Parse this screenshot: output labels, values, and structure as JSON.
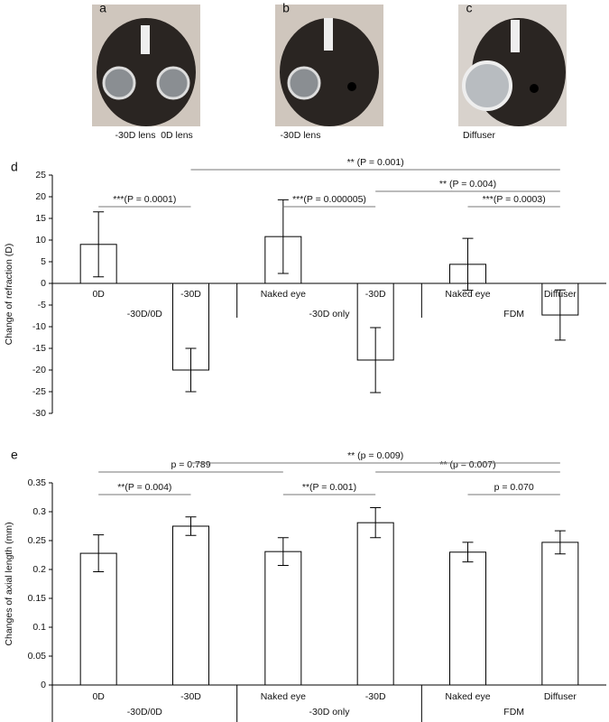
{
  "photos": [
    {
      "label": "a",
      "captions": [
        "-30D lens",
        "0D lens"
      ]
    },
    {
      "label": "b",
      "captions": [
        "-30D lens"
      ]
    },
    {
      "label": "c",
      "captions": [
        "Diffuser"
      ]
    }
  ],
  "chart_data": [
    {
      "type": "bar",
      "panel": "d",
      "y_label": "Change of refraction (D)",
      "categories": [
        "0D",
        "-30D",
        "Naked eye",
        "-30D",
        "Naked eye",
        "Diffuser"
      ],
      "groups": [
        "-30D/0D",
        "-30D only",
        "FDM"
      ],
      "values": [
        9,
        -20,
        10.8,
        -17.7,
        4.4,
        -7.3
      ],
      "errors": [
        7.5,
        5,
        8.5,
        7.5,
        6,
        5.8
      ],
      "ylim": [
        -30,
        25
      ],
      "yticks": [
        -30,
        -25,
        -20,
        -15,
        -10,
        -5,
        0,
        5,
        10,
        15,
        20,
        25
      ],
      "color": "#ffffff",
      "annotations": [
        {
          "label": "***(P = 0.0001)",
          "from": 0,
          "to": 1
        },
        {
          "label": "***(P = 0.000005)",
          "from": 2,
          "to": 3
        },
        {
          "label": "***(P = 0.0003)",
          "from": 4,
          "to": 5
        },
        {
          "label": "** (P = 0.004)",
          "from": 3,
          "to": 5
        },
        {
          "label": "** (P = 0.001)",
          "from": 1,
          "to": 5
        }
      ]
    },
    {
      "type": "bar",
      "panel": "e",
      "y_label": "Changes of axial length (mm)",
      "categories": [
        "0D",
        "-30D",
        "Naked eye",
        "-30D",
        "Naked eye",
        "Diffuser"
      ],
      "groups": [
        "-30D/0D",
        "-30D only",
        "FDM"
      ],
      "values": [
        0.228,
        0.275,
        0.231,
        0.281,
        0.23,
        0.247
      ],
      "errors": [
        0.032,
        0.016,
        0.024,
        0.026,
        0.017,
        0.02
      ],
      "ylim": [
        0,
        0.35
      ],
      "yticks": [
        0,
        0.05,
        0.1,
        0.15,
        0.2,
        0.25,
        0.3,
        0.35
      ],
      "color": "#ffffff",
      "annotations": [
        {
          "label": "**(P = 0.004)",
          "from": 0,
          "to": 1
        },
        {
          "label": "**(P = 0.001)",
          "from": 2,
          "to": 3
        },
        {
          "label": "p = 0.070",
          "from": 4,
          "to": 5
        },
        {
          "label": "p = 0.789",
          "from": 0,
          "to": 2
        },
        {
          "label": "** (p = 0.007)",
          "from": 3,
          "to": 5
        },
        {
          "label": "** (p = 0.009)",
          "from": 1,
          "to": 5
        }
      ]
    }
  ]
}
